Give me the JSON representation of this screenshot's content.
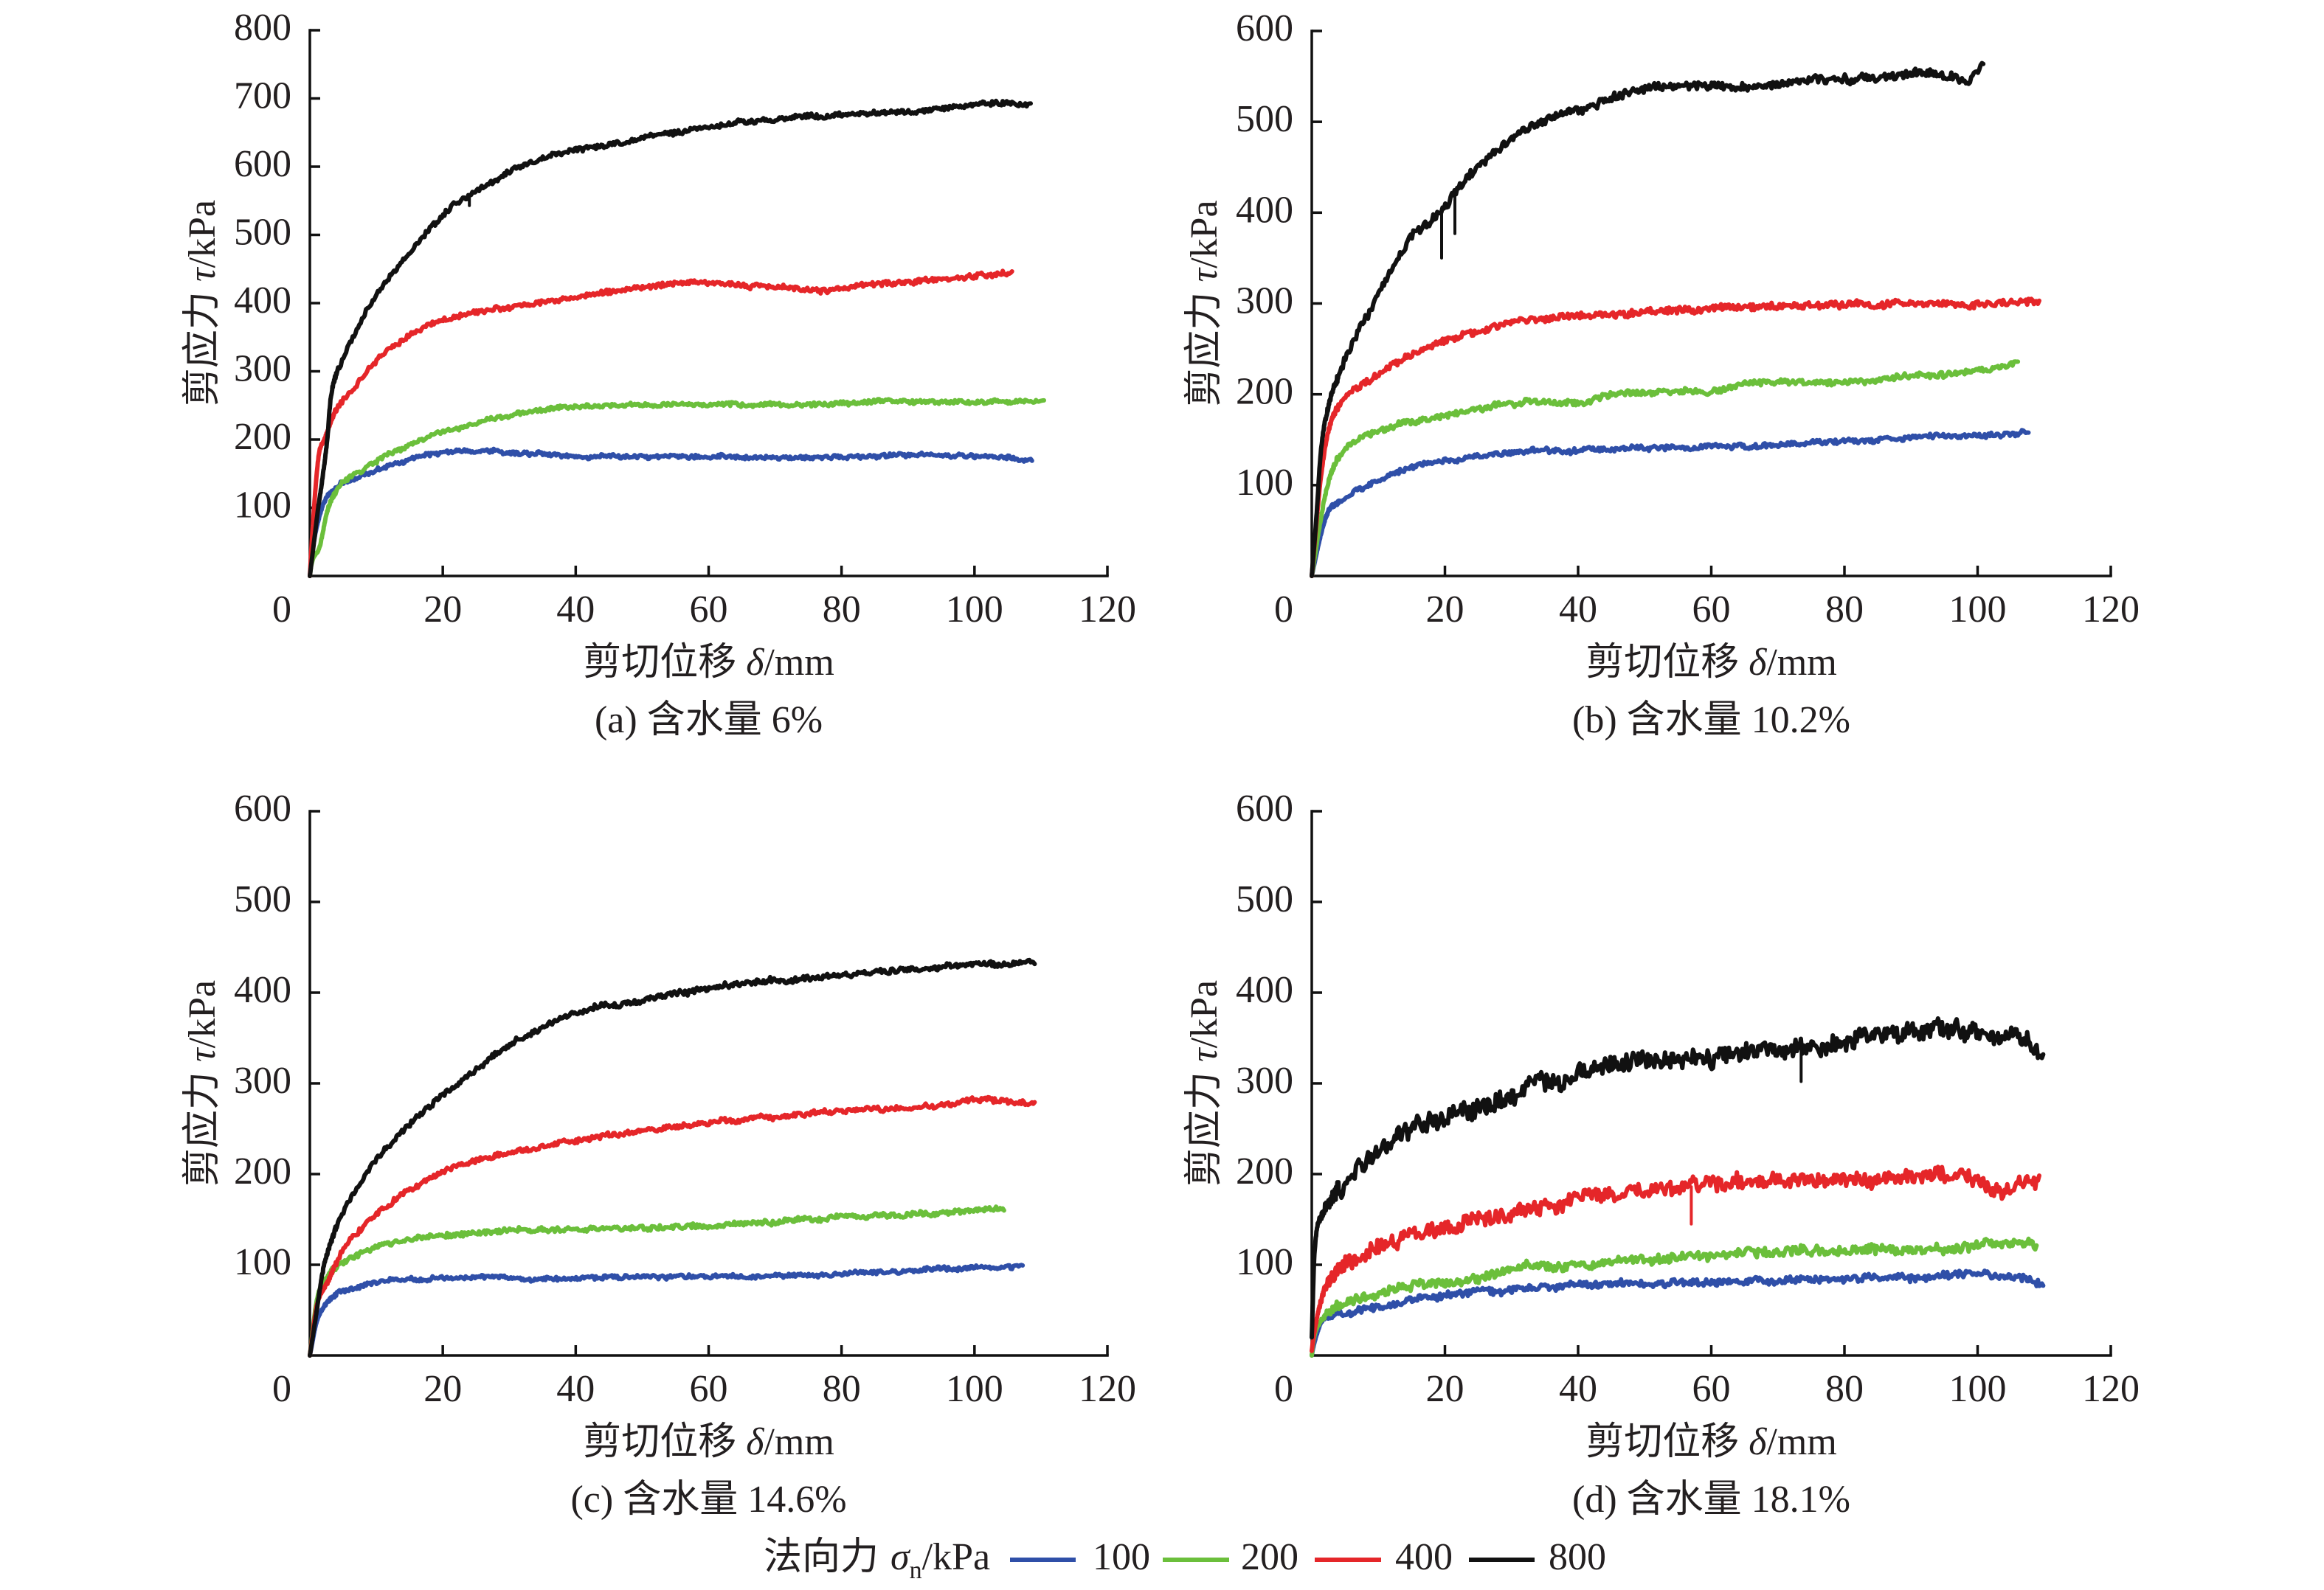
{
  "legend": {
    "title": {
      "label": "法向力",
      "symbol": "σ",
      "subscript": "n",
      "unit": "/kPa"
    },
    "entries": [
      {
        "label": "100",
        "color": "#2F4FA8"
      },
      {
        "label": "200",
        "color": "#6BBF3B"
      },
      {
        "label": "400",
        "color": "#E52629"
      },
      {
        "label": "800",
        "color": "#111111"
      }
    ]
  },
  "chart_data": [
    {
      "type": "line",
      "title": "(a) 含水量 6%",
      "xlabel": {
        "label": "剪切位移",
        "symbol": "δ",
        "unit": "/mm"
      },
      "ylabel": {
        "label": "剪应力",
        "symbol": "τ",
        "unit": "/kPa"
      },
      "xlim": [
        0,
        120
      ],
      "ylim": [
        0,
        800
      ],
      "xticks": [
        0,
        20,
        40,
        60,
        80,
        100,
        120
      ],
      "yticks": [
        100,
        200,
        300,
        400,
        500,
        600,
        700,
        800
      ],
      "grid": false,
      "legend": "bottom",
      "series": [
        {
          "sigma_n": 100,
          "color": "#2F4FA8",
          "x": [
            0,
            0.3,
            1.9,
            3.7,
            7.4,
            12.5,
            20,
            25.5,
            31.6,
            42.8,
            53.9,
            65.1,
            76.2,
            87.4,
            98.5,
            108.8
          ],
          "y": [
            0,
            30,
            102,
            127,
            145,
            163,
            181,
            183,
            180,
            175,
            175,
            175,
            173,
            177,
            176,
            171
          ]
        },
        {
          "sigma_n": 200,
          "color": "#6BBF3B",
          "x": [
            0,
            0.2,
            1.5,
            2.6,
            4.1,
            7.4,
            12.5,
            20,
            25.5,
            33.9,
            42.8,
            53.9,
            65.1,
            76.2,
            87.4,
            98.5,
            110.5
          ],
          "y": [
            0,
            15,
            44,
            95,
            127,
            152,
            181,
            210,
            225,
            243,
            249,
            251,
            251,
            251,
            257,
            254,
            257
          ]
        },
        {
          "sigma_n": 400,
          "color": "#E52629",
          "x": [
            0,
            0.3,
            1.3,
            2.2,
            3.7,
            5.9,
            8.9,
            12.5,
            18.1,
            24.4,
            31.6,
            40.6,
            49.5,
            58.4,
            67.3,
            76.2,
            85.1,
            94,
            103,
            105.8
          ],
          "y": [
            0,
            52,
            174,
            199,
            239,
            268,
            304,
            336,
            369,
            385,
            394,
            409,
            423,
            430,
            424,
            419,
            428,
            435,
            443,
            444
          ]
        },
        {
          "sigma_n": 800,
          "color": "#111111",
          "x": [
            0,
            1.1,
            2.6,
            3.1,
            5.2,
            7.5,
            10,
            13,
            16,
            20.5,
            25,
            31.6,
            38.3,
            45,
            51.7,
            60.6,
            69.5,
            80.7,
            91.8,
            100.7,
            108.5
          ],
          "y": [
            0,
            88,
            199,
            257,
            322,
            369,
            412,
            450,
            485,
            532,
            565,
            599,
            621,
            632,
            644,
            658,
            670,
            677,
            681,
            692,
            692
          ],
          "spikes": [
            [
              24,
              543
            ]
          ]
        }
      ]
    },
    {
      "type": "line",
      "title": "(b) 含水量 10.2%",
      "xlabel": {
        "label": "剪切位移",
        "symbol": "δ",
        "unit": "/mm"
      },
      "ylabel": {
        "label": "剪应力",
        "symbol": "τ",
        "unit": "/kPa"
      },
      "xlim": [
        0,
        120
      ],
      "ylim": [
        0,
        600
      ],
      "xticks": [
        0,
        20,
        40,
        60,
        80,
        100,
        120
      ],
      "yticks": [
        100,
        200,
        300,
        400,
        500,
        600
      ],
      "grid": false,
      "legend": "bottom",
      "series": [
        {
          "sigma_n": 100,
          "color": "#2F4FA8",
          "x": [
            0,
            1.3,
            2.5,
            5.2,
            9.7,
            15.3,
            21.9,
            28.6,
            37.5,
            46.5,
            55.4,
            64.3,
            73.2,
            82.2,
            91.1,
            100,
            107.7
          ],
          "y": [
            0,
            43,
            71,
            85,
            104,
            121,
            129,
            135,
            138,
            140,
            142,
            142,
            146,
            149,
            153,
            155,
            157
          ]
        },
        {
          "sigma_n": 200,
          "color": "#6BBF3B",
          "x": [
            0,
            1.3,
            2.5,
            4.7,
            7.5,
            11.9,
            18.6,
            25.3,
            33.1,
            39.8,
            46.5,
            53.1,
            59.8,
            66.5,
            75.4,
            84.3,
            88.8,
            94.4,
            100,
            106.1
          ],
          "y": [
            0,
            60,
            104,
            138,
            152,
            165,
            174,
            185,
            191,
            191,
            202,
            202,
            204,
            213,
            213,
            216,
            221,
            221,
            227,
            235
          ]
        },
        {
          "sigma_n": 400,
          "color": "#E52629",
          "x": [
            0,
            1.3,
            2.5,
            4.1,
            7.5,
            10.8,
            16.4,
            21.9,
            28.6,
            35.3,
            44.2,
            53.1,
            62,
            73.2,
            84.3,
            95.5,
            98.8,
            100.5,
            109.4
          ],
          "y": [
            0,
            104,
            160,
            188,
            210,
            227,
            249,
            263,
            277,
            284,
            288,
            292,
            295,
            298,
            300,
            301,
            296,
            300,
            300
          ]
        },
        {
          "sigma_n": 800,
          "color": "#111111",
          "x": [
            0,
            0.8,
            1.3,
            2.5,
            4.1,
            6.4,
            9.7,
            13,
            16.4,
            19.7,
            21.9,
            25.3,
            29.7,
            34.2,
            39.8,
            44.2,
            53.1,
            59.8,
            66.5,
            73.2,
            79.9,
            86.6,
            93.3,
            98.8,
            100,
            101
          ],
          "y": [
            0,
            76,
            132,
            188,
            221,
            260,
            305,
            349,
            383,
            405,
            427,
            450,
            477,
            500,
            514,
            525,
            541,
            539,
            539,
            544,
            547,
            550,
            553,
            547,
            555,
            571
          ],
          "spikes": [
            [
              19.5,
              350
            ],
            [
              21.5,
              377
            ]
          ]
        }
      ]
    },
    {
      "type": "line",
      "title": "(c) 含水量 14.6%",
      "xlabel": {
        "label": "剪切位移",
        "symbol": "δ",
        "unit": "/mm"
      },
      "ylabel": {
        "label": "剪应力",
        "symbol": "τ",
        "unit": "/kPa"
      },
      "xlim": [
        0,
        120
      ],
      "ylim": [
        0,
        600
      ],
      "xticks": [
        0,
        20,
        40,
        60,
        80,
        100,
        120
      ],
      "yticks": [
        100,
        200,
        300,
        400,
        500,
        600
      ],
      "grid": false,
      "legend": "bottom",
      "series": [
        {
          "sigma_n": 100,
          "color": "#2F4FA8",
          "x": [
            0,
            1,
            2.7,
            6,
            9.4,
            14.9,
            26.1,
            38.3,
            49.5,
            60.6,
            71.8,
            82.9,
            94,
            107.4
          ],
          "y": [
            0,
            36,
            59,
            73,
            80,
            84,
            86,
            84,
            87,
            87,
            88,
            91,
            95,
            99
          ]
        },
        {
          "sigma_n": 200,
          "color": "#6BBF3B",
          "x": [
            0,
            1,
            2.7,
            6,
            11.6,
            18.3,
            27.2,
            38.3,
            49.5,
            60.6,
            71.8,
            82.9,
            94,
            104.6
          ],
          "y": [
            0,
            59,
            87,
            106,
            123,
            131,
            136,
            139,
            141,
            143,
            148,
            154,
            157,
            162
          ]
        },
        {
          "sigma_n": 400,
          "color": "#E52629",
          "x": [
            0,
            1,
            2.7,
            4.9,
            8.2,
            12.7,
            18.3,
            25,
            33.9,
            42.8,
            51.7,
            60.6,
            69.5,
            78.4,
            87.4,
            96.3,
            100.7,
            109.1
          ],
          "y": [
            0,
            53,
            81,
            115,
            143,
            171,
            196,
            215,
            229,
            240,
            249,
            256,
            263,
            268,
            272,
            276,
            282,
            278
          ]
        },
        {
          "sigma_n": 800,
          "color": "#111111",
          "x": [
            0,
            1,
            2.1,
            3.8,
            6,
            9.4,
            13.8,
            18.3,
            22.7,
            29.4,
            36.1,
            42.8,
            49.5,
            58.4,
            67.3,
            76.2,
            85.1,
            94,
            103,
            109.1
          ],
          "y": [
            0,
            48,
            98,
            137,
            171,
            210,
            246,
            277,
            302,
            338,
            366,
            383,
            391,
            403,
            411,
            417,
            422,
            428,
            431,
            433
          ]
        }
      ]
    },
    {
      "type": "line",
      "title": "(d) 含水量 18.1%",
      "xlabel": {
        "label": "剪切位移",
        "symbol": "δ",
        "unit": "/mm"
      },
      "ylabel": {
        "label": "剪应力",
        "symbol": "τ",
        "unit": "/kPa"
      },
      "xlim": [
        0,
        120
      ],
      "ylim": [
        0,
        600
      ],
      "xticks": [
        0,
        20,
        40,
        60,
        80,
        100,
        120
      ],
      "yticks": [
        100,
        200,
        300,
        400,
        500,
        600
      ],
      "grid": false,
      "legend": "bottom",
      "series": [
        {
          "sigma_n": 100,
          "color": "#2F4FA8",
          "x": [
            0,
            0.2,
            1.7,
            5.4,
            12.7,
            20.2,
            30.5,
            44.2,
            55.4,
            66.5,
            77.7,
            88.8,
            97.7,
            104.4,
            110
          ],
          "y": [
            0,
            8,
            39,
            47,
            57,
            66,
            73,
            78,
            80,
            81,
            84,
            87,
            88,
            86,
            80
          ]
        },
        {
          "sigma_n": 200,
          "color": "#6BBF3B",
          "x": [
            0,
            0.2,
            1.7,
            5.4,
            12.7,
            20.2,
            30.5,
            42,
            50.9,
            59.8,
            68.7,
            77.7,
            86.6,
            95.5,
            102.2,
            108.9
          ],
          "y": [
            0,
            14,
            41,
            57,
            73,
            81,
            95,
            101,
            106,
            111,
            115,
            115,
            117,
            117,
            123,
            123
          ]
        },
        {
          "sigma_n": 400,
          "color": "#E52629",
          "x": [
            0,
            0.2,
            1.7,
            3.5,
            7.2,
            12.7,
            20.2,
            30.5,
            39.8,
            46.5,
            55.4,
            64.3,
            73.2,
            82.2,
            91.1,
            100,
            103.3,
            109.4
          ],
          "y": [
            5,
            17,
            69,
            90,
            109,
            127,
            141,
            157,
            173,
            179,
            185,
            190,
            193,
            193,
            199,
            197,
            182,
            196
          ],
          "spikes": [
            [
              57,
              145
            ]
          ]
        },
        {
          "sigma_n": 800,
          "color": "#111111",
          "x": [
            0,
            0.4,
            1.7,
            3.5,
            7.2,
            12.1,
            17.2,
            21.9,
            28.6,
            35.3,
            42,
            48.7,
            57.6,
            66.5,
            75.4,
            84.3,
            93.3,
            97.7,
            102.2,
            106.6,
            110
          ],
          "y": [
            20,
            111,
            157,
            178,
            206,
            238,
            256,
            266,
            282,
            302,
            313,
            322,
            327,
            333,
            341,
            355,
            358,
            361,
            352,
            350,
            322
          ],
          "spikes": [
            [
              73.5,
              302
            ]
          ]
        }
      ]
    }
  ]
}
